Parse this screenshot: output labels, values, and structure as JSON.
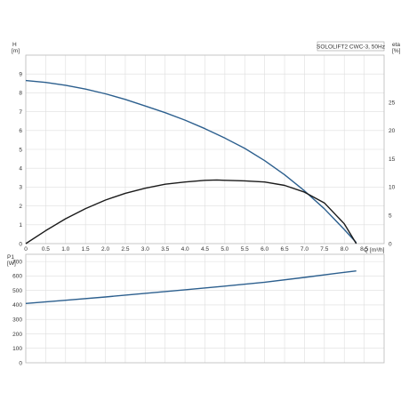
{
  "chart_data": [
    {
      "type": "line",
      "legend": "SOLOLIFT2 CWC-3, 50Hz",
      "legend_placement": "top-right",
      "grid": true,
      "xlabel": "Q [m³/h]",
      "xlim": [
        0,
        9
      ],
      "x_ticks": [
        "0",
        "0.5",
        "1.0",
        "1.5",
        "2.0",
        "2.5",
        "3.0",
        "3.5",
        "4.0",
        "4.5",
        "5.0",
        "5.5",
        "6.0",
        "6.5",
        "7.0",
        "7.5",
        "8.0",
        "8.5"
      ],
      "ylabel_left": {
        "name": "H",
        "unit": "[m]"
      },
      "ylim_left": [
        0,
        10
      ],
      "y_ticks_left": [
        "0",
        "1",
        "2",
        "3",
        "4",
        "5",
        "6",
        "7",
        "8",
        "9"
      ],
      "ylabel_right": {
        "name": "eta",
        "unit": "[%]"
      },
      "ylim_right": [
        0,
        33.33
      ],
      "y_ticks_right": [
        "0",
        "5",
        "10",
        "15",
        "20",
        "25"
      ],
      "series": [
        {
          "axis": "left",
          "color": "#2c5f8e",
          "x": [
            0,
            0.5,
            1.0,
            1.5,
            2.0,
            2.5,
            3.0,
            3.5,
            4.0,
            4.5,
            5.0,
            5.5,
            6.0,
            6.5,
            7.0,
            7.5,
            8.0,
            8.3
          ],
          "values": [
            8.65,
            8.55,
            8.4,
            8.2,
            7.95,
            7.65,
            7.3,
            6.95,
            6.55,
            6.1,
            5.6,
            5.05,
            4.4,
            3.65,
            2.8,
            1.85,
            0.75,
            0.05
          ]
        },
        {
          "axis": "right",
          "color": "#1a1a1a",
          "x": [
            0,
            0.5,
            1.0,
            1.5,
            2.0,
            2.5,
            3.0,
            3.5,
            4.0,
            4.5,
            4.8,
            5.0,
            5.5,
            6.0,
            6.5,
            7.0,
            7.5,
            8.0,
            8.3
          ],
          "values": [
            0,
            2.3,
            4.4,
            6.2,
            7.7,
            8.9,
            9.8,
            10.5,
            10.9,
            11.2,
            11.25,
            11.2,
            11.1,
            10.9,
            10.3,
            9.1,
            7.2,
            3.5,
            0
          ]
        }
      ]
    },
    {
      "type": "line",
      "grid": true,
      "xlim": [
        0,
        9
      ],
      "ylabel": {
        "name": "P1",
        "unit": "[W]"
      },
      "ylim": [
        0,
        750
      ],
      "y_ticks": [
        "0",
        "100",
        "200",
        "300",
        "400",
        "500",
        "600",
        "700"
      ],
      "series": [
        {
          "color": "#2c5f8e",
          "x": [
            0,
            1.0,
            2.0,
            3.0,
            4.0,
            5.0,
            6.0,
            7.0,
            8.0,
            8.3
          ],
          "values": [
            410,
            432,
            455,
            480,
            505,
            530,
            557,
            590,
            625,
            635
          ]
        }
      ]
    }
  ]
}
